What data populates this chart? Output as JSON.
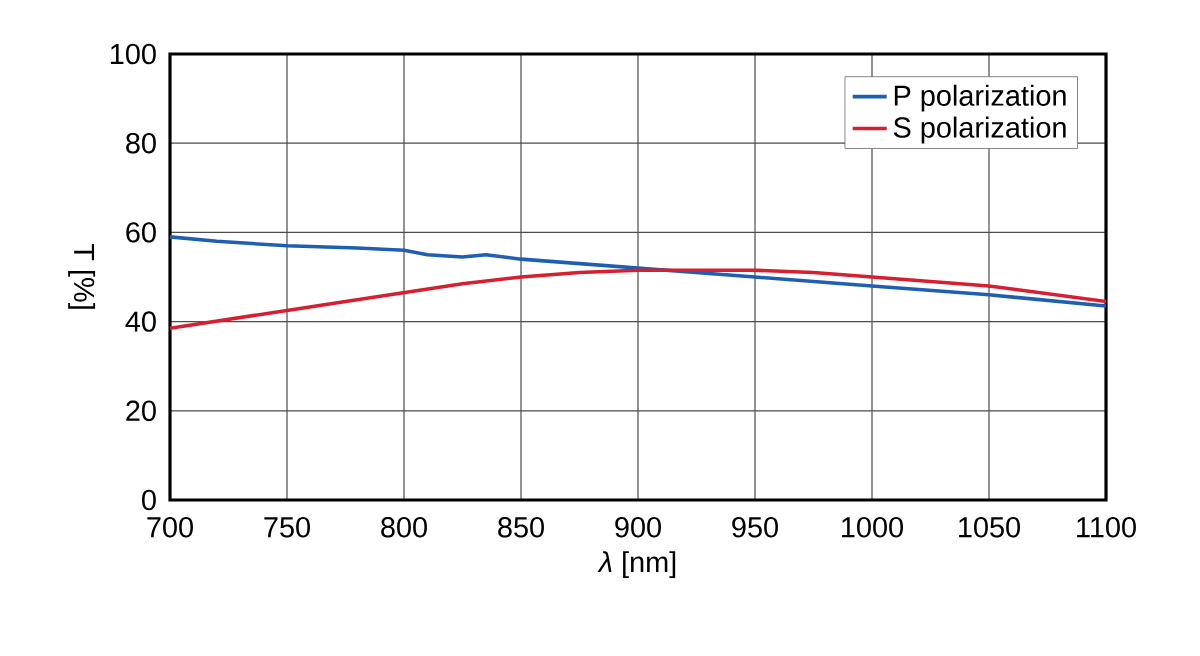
{
  "chart_data": {
    "type": "line",
    "xlabel": "*λ* [nm]",
    "ylabel": "T [%]",
    "xlim": [
      700,
      1100
    ],
    "xticks": [
      700,
      750,
      800,
      850,
      900,
      950,
      1000,
      1050,
      1100
    ],
    "ylim": [
      0,
      100
    ],
    "yticks": [
      0,
      20,
      40,
      60,
      80,
      100
    ],
    "grid": true,
    "legend": "top right",
    "series": [
      {
        "name": "P polarization",
        "color": "#1f5fb0",
        "x": [
          700,
          720,
          750,
          780,
          800,
          810,
          825,
          835,
          850,
          875,
          900,
          925,
          950,
          1000,
          1050,
          1100
        ],
        "values": [
          59,
          58,
          57,
          56.5,
          56,
          55,
          54.5,
          55,
          54,
          53,
          52,
          51,
          50,
          48,
          46,
          43.5
        ]
      },
      {
        "name": "S polarization",
        "color": "#d42030",
        "x": [
          700,
          725,
          750,
          775,
          800,
          825,
          850,
          875,
          900,
          925,
          950,
          975,
          1000,
          1050,
          1100
        ],
        "values": [
          38.5,
          40.5,
          42.5,
          44.5,
          46.5,
          48.5,
          50,
          51,
          51.5,
          51.5,
          51.5,
          51,
          50,
          48,
          44.5
        ]
      }
    ]
  }
}
